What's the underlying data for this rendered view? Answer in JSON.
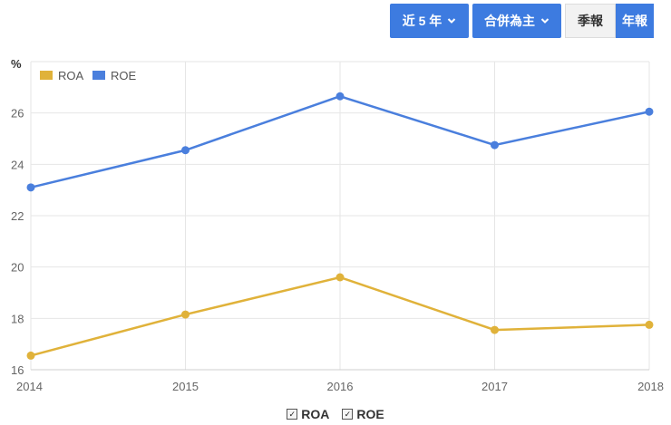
{
  "controls": {
    "range_label": "近 5 年",
    "scope_label": "合併為主",
    "quarterly_label": "季報",
    "annual_label": "年報",
    "active_period": "annual"
  },
  "colors": {
    "roa": "#e0b23a",
    "roe": "#4a7fdd",
    "button": "#3d7be0"
  },
  "checkbox_legend": [
    {
      "label": "ROA",
      "checked": true
    },
    {
      "label": "ROE",
      "checked": true
    }
  ],
  "chart_data": {
    "type": "line",
    "unit_label": "%",
    "x": [
      "2014",
      "2015",
      "2016",
      "2017",
      "2018"
    ],
    "series": [
      {
        "name": "ROA",
        "color": "#e0b23a",
        "values": [
          16.55,
          18.15,
          19.6,
          17.55,
          17.75
        ]
      },
      {
        "name": "ROE",
        "color": "#4a7fdd",
        "values": [
          23.1,
          24.55,
          26.65,
          24.75,
          26.05
        ]
      }
    ],
    "ylim": [
      16,
      28
    ],
    "yticks": [
      16,
      18,
      20,
      22,
      24,
      26
    ],
    "legend_position": "top-left",
    "grid": true
  }
}
